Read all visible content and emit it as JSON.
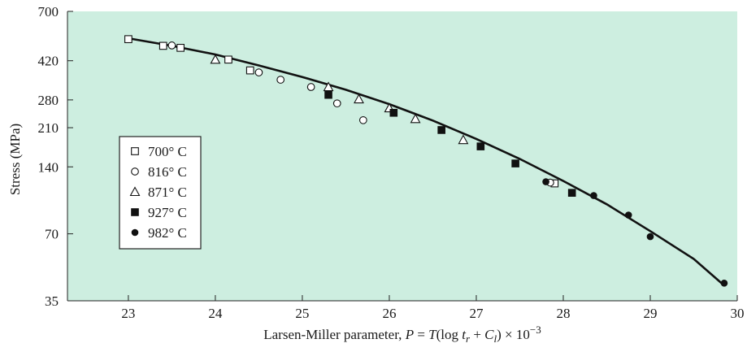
{
  "chart_data": {
    "type": "scatter",
    "xlabel": {
      "prefix": "Larsen-Miller parameter, ",
      "P": "P",
      "eq": " = ",
      "T": "T",
      "open": "(log ",
      "t": "t",
      "r": "r",
      "plus": " + ",
      "C": "C",
      "l": "l",
      "close": ") × 10",
      "exp": "−3"
    },
    "ylabel": "Stress (MPa)",
    "xlim": [
      22.3,
      30.0
    ],
    "ylim": [
      35,
      700
    ],
    "yscale": "log",
    "grid": false,
    "background": "#cdeee0",
    "legend_position": "left",
    "x_ticks": [
      "23",
      "24",
      "25",
      "26",
      "27",
      "28",
      "29",
      "30"
    ],
    "y_ticks": [
      "35",
      "70",
      "140",
      "210",
      "280",
      "420",
      "700"
    ],
    "series": [
      {
        "name": "700° C",
        "marker": "square-open",
        "points": [
          [
            23.0,
            525
          ],
          [
            23.4,
            490
          ],
          [
            23.6,
            480
          ],
          [
            24.15,
            425
          ],
          [
            24.4,
            380
          ],
          [
            27.9,
            118
          ]
        ]
      },
      {
        "name": "816° C",
        "marker": "circle-open",
        "points": [
          [
            23.5,
            492
          ],
          [
            24.5,
            372
          ],
          [
            24.75,
            345
          ],
          [
            25.1,
            320
          ],
          [
            25.4,
            270
          ],
          [
            25.7,
            227
          ],
          [
            27.85,
            119
          ]
        ]
      },
      {
        "name": "871° C",
        "marker": "triangle-open",
        "points": [
          [
            24.0,
            425
          ],
          [
            25.3,
            320
          ],
          [
            25.65,
            282
          ],
          [
            26.0,
            257
          ],
          [
            26.3,
            230
          ],
          [
            26.85,
            185
          ]
        ]
      },
      {
        "name": "927° C",
        "marker": "square-filled",
        "points": [
          [
            25.3,
            295
          ],
          [
            26.05,
            245
          ],
          [
            26.6,
            205
          ],
          [
            27.05,
            173
          ],
          [
            27.45,
            145
          ],
          [
            28.1,
            107
          ]
        ]
      },
      {
        "name": "982° C",
        "marker": "circle-filled",
        "points": [
          [
            27.8,
            120
          ],
          [
            28.35,
            104
          ],
          [
            28.75,
            85
          ],
          [
            29.0,
            68
          ],
          [
            29.85,
            42
          ]
        ]
      }
    ],
    "fit_curve": [
      [
        23.0,
        530
      ],
      [
        23.5,
        490
      ],
      [
        24.0,
        448
      ],
      [
        24.5,
        400
      ],
      [
        25.0,
        355
      ],
      [
        25.5,
        311
      ],
      [
        26.0,
        268
      ],
      [
        26.5,
        226
      ],
      [
        27.0,
        187
      ],
      [
        27.5,
        152
      ],
      [
        28.0,
        121
      ],
      [
        28.5,
        95
      ],
      [
        29.0,
        72
      ],
      [
        29.5,
        54
      ],
      [
        29.85,
        41
      ]
    ]
  }
}
